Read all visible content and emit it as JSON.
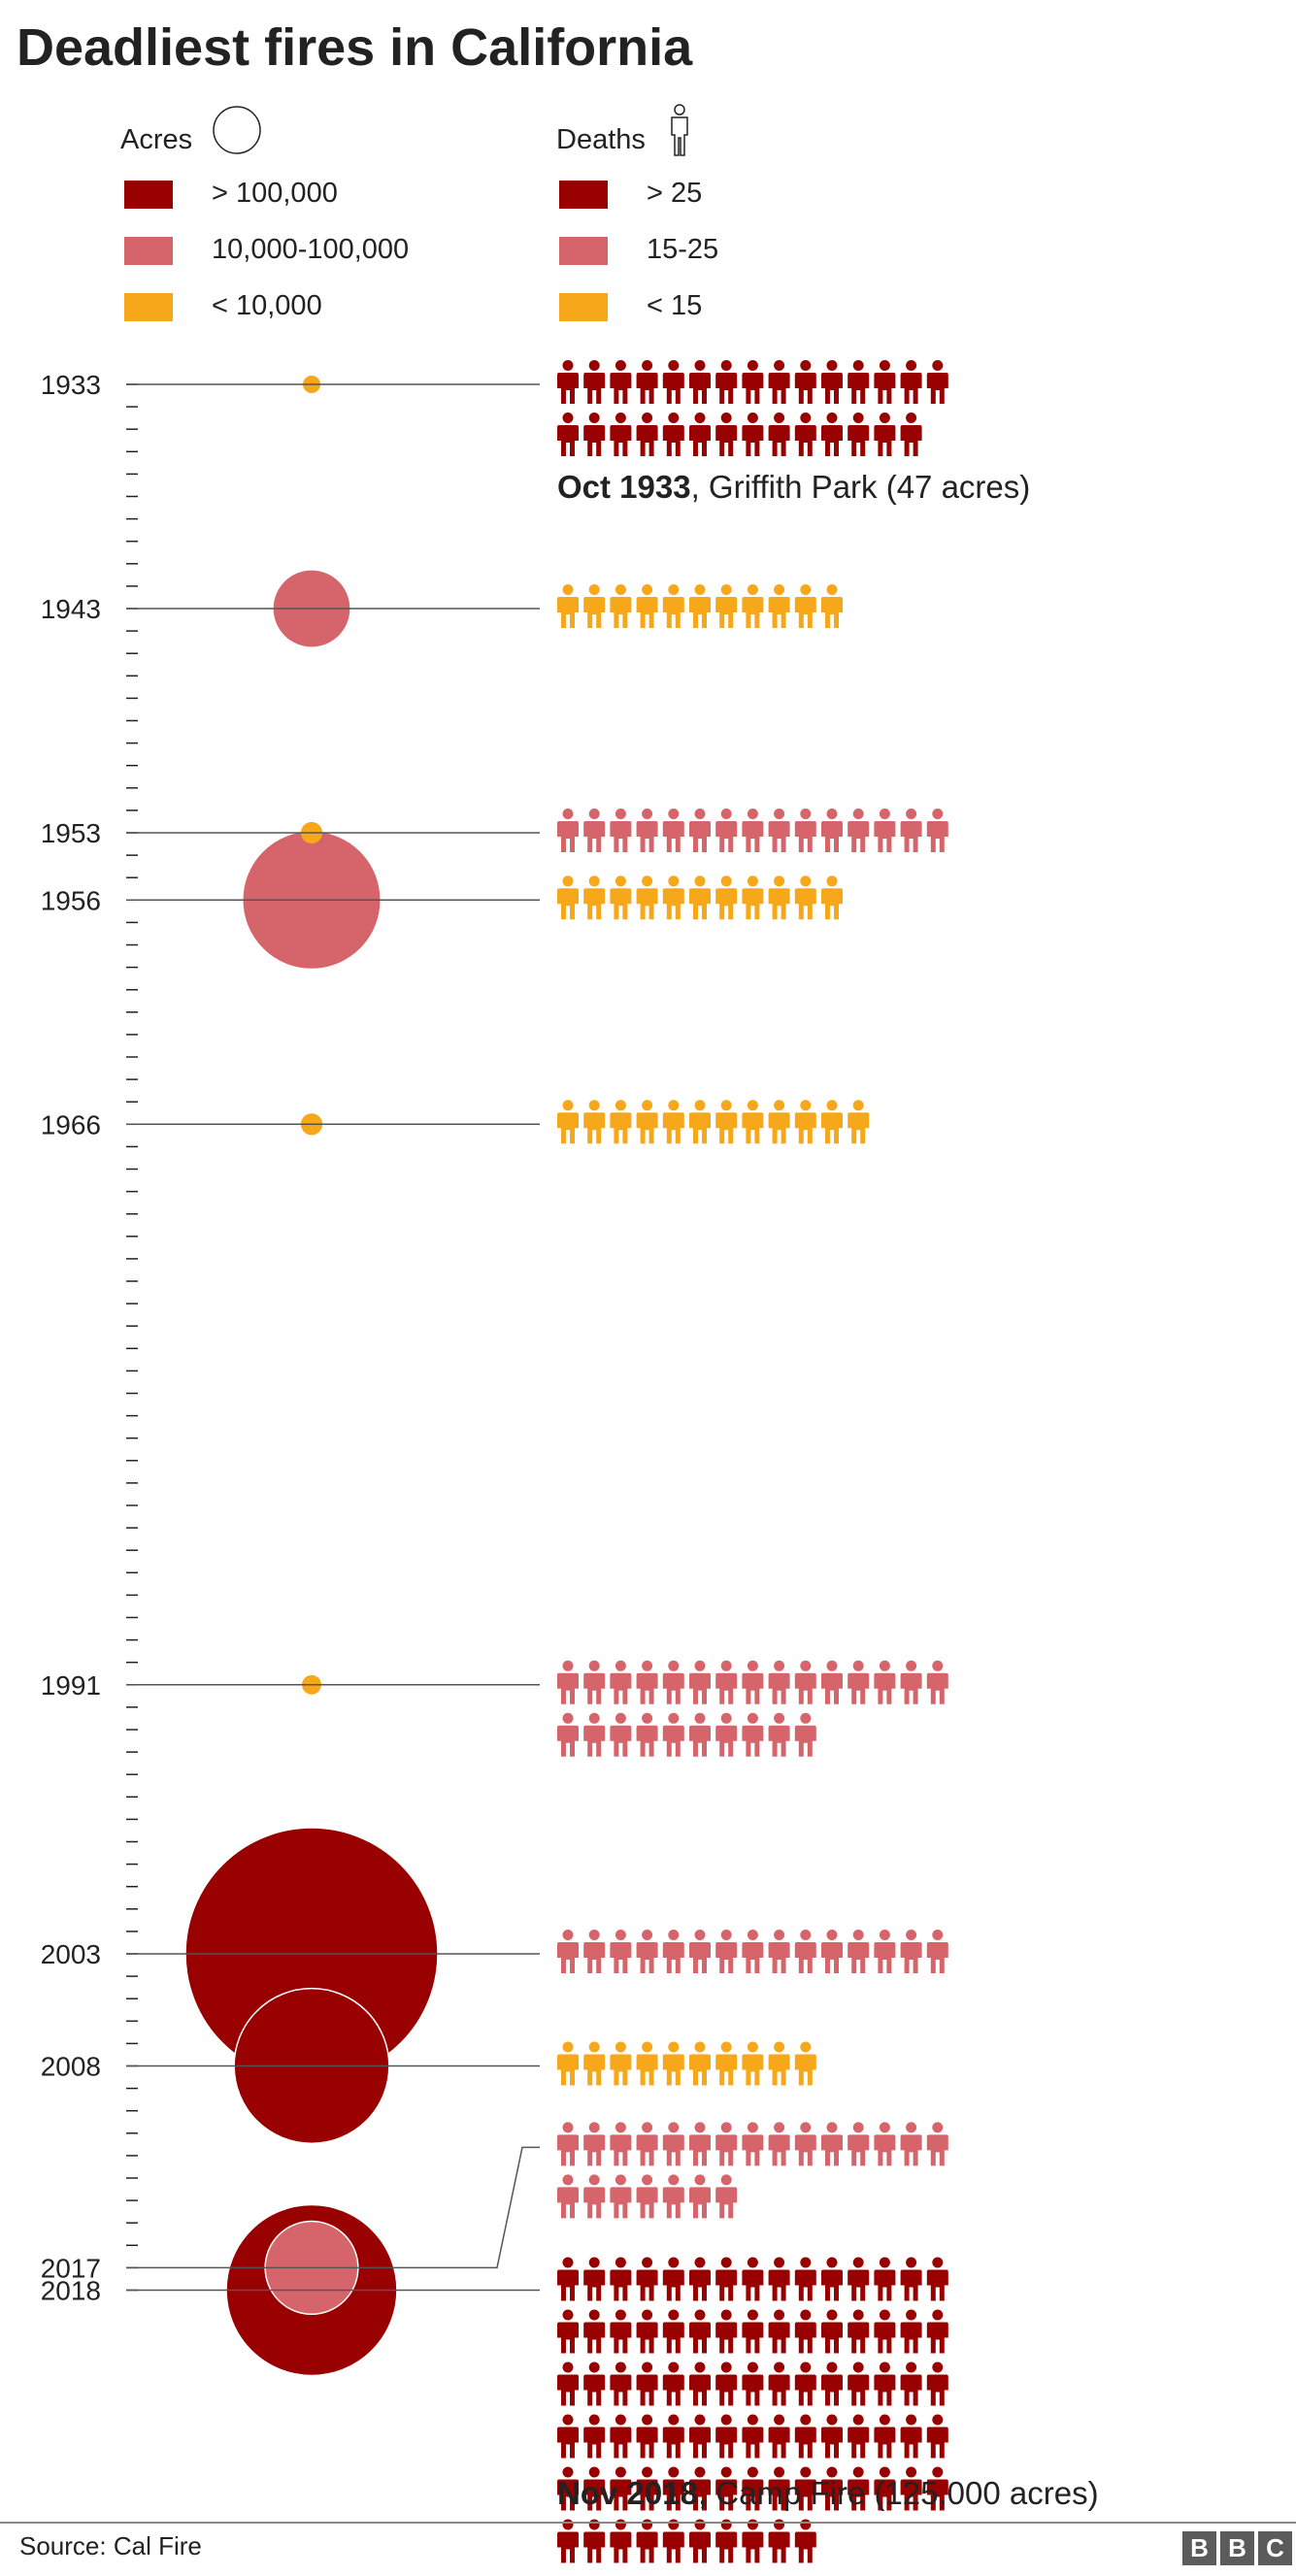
{
  "chart_data": {
    "type": "bubble-timeline",
    "title": "Deadliest fires in California",
    "source": "Source: Cal Fire",
    "brand": [
      "B",
      "B",
      "C"
    ],
    "colors": {
      "high": "#990000",
      "medium": "#d5646b",
      "low": "#f7a71a",
      "line": "#555555"
    },
    "legend": {
      "acres": {
        "title": "Acres",
        "icon": "circle-outline-icon",
        "items": [
          {
            "label": "> 100,000",
            "level": "high"
          },
          {
            "label": "10,000-100,000",
            "level": "medium"
          },
          {
            "label": "< 10,000",
            "level": "low"
          }
        ]
      },
      "deaths": {
        "title": "Deaths",
        "icon": "person-outline-icon",
        "items": [
          {
            "label": "> 25",
            "level": "high"
          },
          {
            "label": "15-25",
            "level": "medium"
          },
          {
            "label": "< 15",
            "level": "low"
          }
        ]
      }
    },
    "axis": {
      "type": "year",
      "range": [
        1933,
        2018
      ],
      "tick_step": 1
    },
    "fires": [
      {
        "year": 1933,
        "deaths": 29,
        "acres": 47,
        "acre_level": "low",
        "death_level": "high"
      },
      {
        "year": 1943,
        "deaths": 11,
        "acres": 25000,
        "acre_level": "medium",
        "death_level": "low"
      },
      {
        "year": 1953,
        "deaths": 15,
        "acres": 2000,
        "acre_level": "low",
        "death_level": "medium"
      },
      {
        "year": 1956,
        "deaths": 11,
        "acres": 82000,
        "acre_level": "medium",
        "death_level": "low"
      },
      {
        "year": 1966,
        "deaths": 12,
        "acres": 2000,
        "acre_level": "low",
        "death_level": "low"
      },
      {
        "year": 1991,
        "deaths": 25,
        "acres": 1600,
        "acre_level": "low",
        "death_level": "medium"
      },
      {
        "year": 2003,
        "deaths": 15,
        "acres": 273000,
        "acre_level": "high",
        "death_level": "medium"
      },
      {
        "year": 2008,
        "deaths": 10,
        "acres": 103000,
        "acre_level": "high",
        "death_level": "low"
      },
      {
        "year": 2017,
        "deaths": 22,
        "acres": 37000,
        "acre_level": "medium",
        "death_level": "medium"
      },
      {
        "year": 2018,
        "deaths": 85,
        "acres": 125000,
        "acre_level": "high",
        "death_level": "high"
      }
    ],
    "annotations": [
      {
        "year": 1933,
        "bold": "Oct 1933",
        "text": ", Griffith Park (47 acres)"
      },
      {
        "year": 2018,
        "bold": "Nov 2018",
        "text": ", Camp Fire (125,000 acres)"
      }
    ]
  }
}
